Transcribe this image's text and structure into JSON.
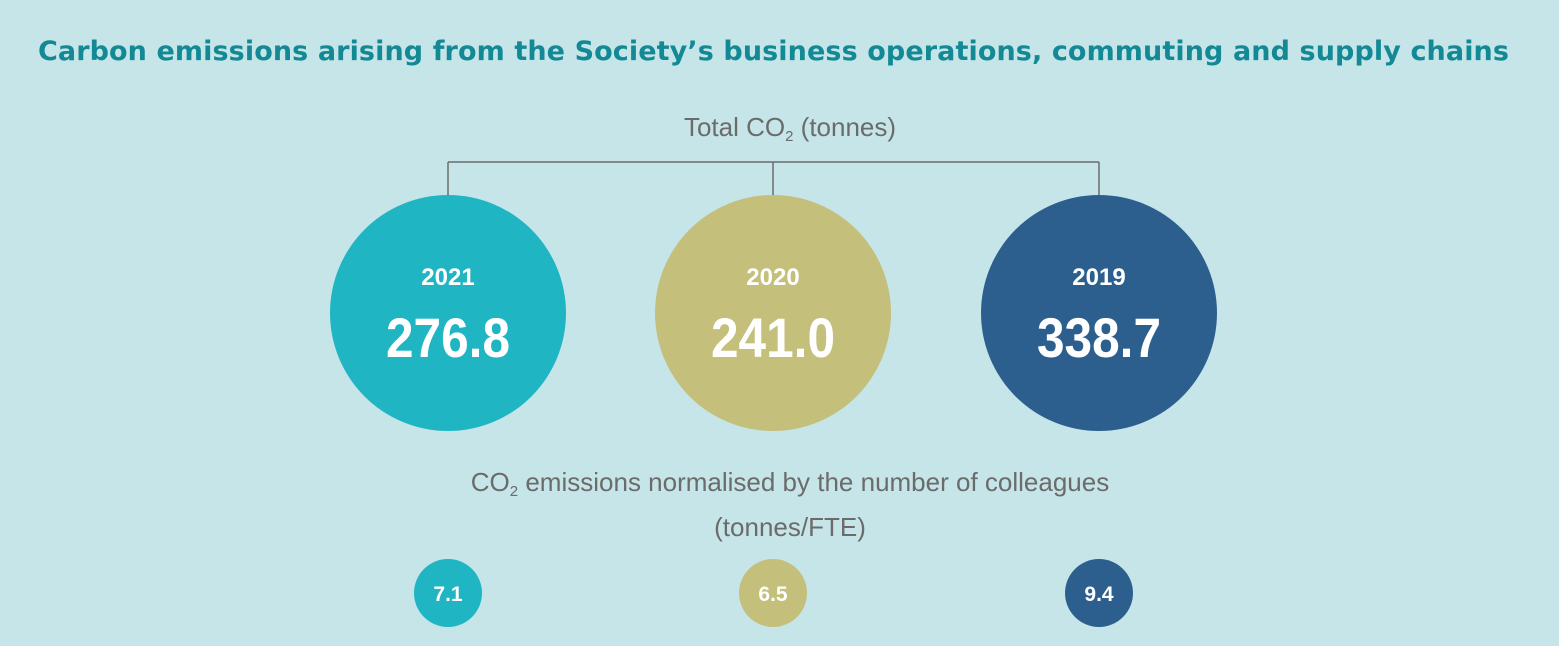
{
  "title": "Carbon emissions arising from the Society’s business operations, commuting and supply chains",
  "total_label": {
    "pre": "Total CO",
    "sub": "2",
    "post": " (tonnes)"
  },
  "normalised_label": {
    "pre": "CO",
    "sub": "2",
    "post": " emissions normalised by the number of colleagues"
  },
  "normalised_unit": "(tonnes/FTE)",
  "colors": {
    "2021": "#20b5c2",
    "2020": "#c4bf7b",
    "2019": "#2d5f8e",
    "background": "#c5e5e8",
    "title": "#128994"
  },
  "chart_data": [
    {
      "type": "bubble",
      "title": "Total CO2 (tonnes)",
      "categories": [
        "2021",
        "2020",
        "2019"
      ],
      "values": [
        276.8,
        241.0,
        338.7
      ],
      "value_labels": [
        "276.8",
        "241.0",
        "338.7"
      ]
    },
    {
      "type": "bubble",
      "title": "CO2 emissions normalised by the number of colleagues (tonnes/FTE)",
      "categories": [
        "2021",
        "2020",
        "2019"
      ],
      "values": [
        7.1,
        6.5,
        9.4
      ],
      "value_labels": [
        "7.1",
        "6.5",
        "9.4"
      ]
    }
  ]
}
